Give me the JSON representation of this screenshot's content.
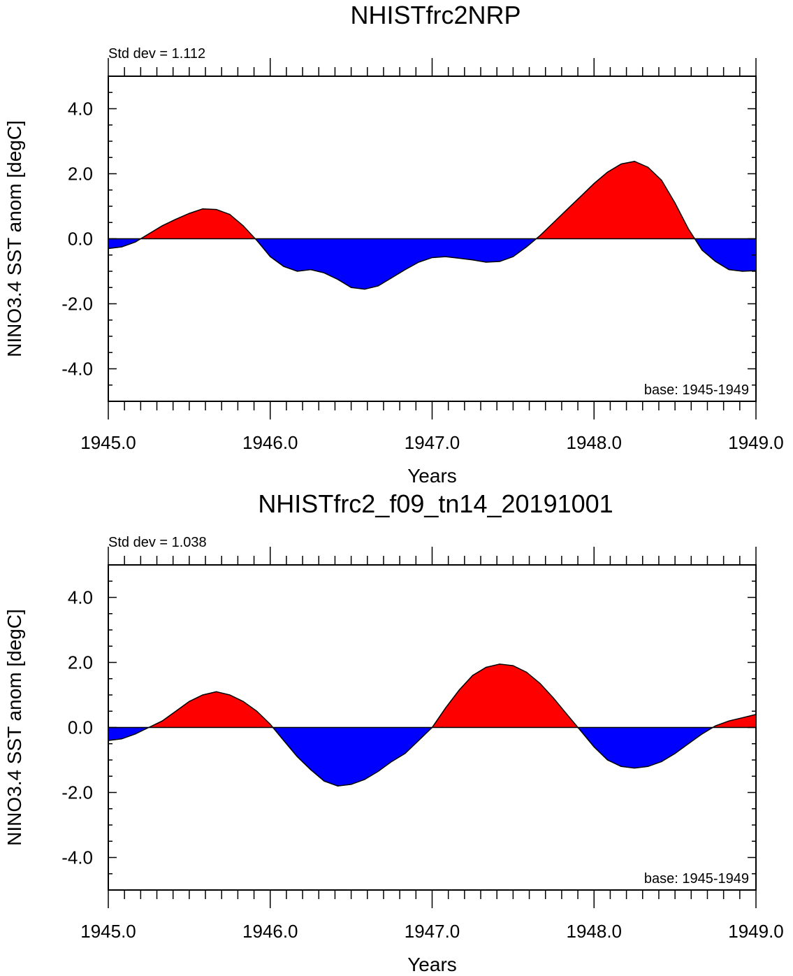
{
  "chart_data": [
    {
      "type": "area",
      "title": "NHISTfrc2NRP",
      "xlabel": "Years",
      "ylabel": "NINO3.4 SST anom [degC]",
      "std_dev_label": "Std dev = 1.112",
      "base_label": "base: 1945-1949",
      "xlim": [
        1945.0,
        1949.0
      ],
      "ylim": [
        -5.0,
        5.0
      ],
      "xticks": [
        "1945.0",
        "1946.0",
        "1947.0",
        "1948.0",
        "1949.0"
      ],
      "yticks": [
        "4.0",
        "2.0",
        "0.0",
        "-2.0",
        "-4.0"
      ],
      "positive_color": "#ff0000",
      "negative_color": "#0000ff",
      "series": [
        {
          "name": "NINO3.4 SST anomaly",
          "x": [
            1945.0,
            1945.083,
            1945.167,
            1945.25,
            1945.333,
            1945.417,
            1945.5,
            1945.583,
            1945.667,
            1945.75,
            1945.833,
            1945.917,
            1946.0,
            1946.083,
            1946.167,
            1946.25,
            1946.333,
            1946.417,
            1946.5,
            1946.583,
            1946.667,
            1946.75,
            1946.833,
            1946.917,
            1947.0,
            1947.083,
            1947.167,
            1947.25,
            1947.333,
            1947.417,
            1947.5,
            1947.583,
            1947.667,
            1947.75,
            1947.833,
            1947.917,
            1948.0,
            1948.083,
            1948.167,
            1948.25,
            1948.333,
            1948.417,
            1948.5,
            1948.583,
            1948.667,
            1948.75,
            1948.833,
            1948.917,
            1949.0
          ],
          "values": [
            -0.3,
            -0.25,
            -0.1,
            0.15,
            0.4,
            0.6,
            0.78,
            0.92,
            0.9,
            0.75,
            0.4,
            -0.05,
            -0.55,
            -0.85,
            -1.0,
            -0.95,
            -1.05,
            -1.25,
            -1.5,
            -1.55,
            -1.45,
            -1.2,
            -0.95,
            -0.72,
            -0.58,
            -0.55,
            -0.6,
            -0.65,
            -0.72,
            -0.7,
            -0.55,
            -0.25,
            0.1,
            0.5,
            0.9,
            1.3,
            1.7,
            2.05,
            2.3,
            2.38,
            2.2,
            1.8,
            1.1,
            0.3,
            -0.35,
            -0.7,
            -0.95,
            -1.0,
            -0.98
          ]
        }
      ]
    },
    {
      "type": "area",
      "title": "NHISTfrc2_f09_tn14_20191001",
      "xlabel": "Years",
      "ylabel": "NINO3.4 SST anom [degC]",
      "std_dev_label": "Std dev = 1.038",
      "base_label": "base: 1945-1949",
      "xlim": [
        1945.0,
        1949.0
      ],
      "ylim": [
        -5.0,
        5.0
      ],
      "xticks": [
        "1945.0",
        "1946.0",
        "1947.0",
        "1948.0",
        "1949.0"
      ],
      "yticks": [
        "4.0",
        "2.0",
        "0.0",
        "-2.0",
        "-4.0"
      ],
      "positive_color": "#ff0000",
      "negative_color": "#0000ff",
      "series": [
        {
          "name": "NINO3.4 SST anomaly",
          "x": [
            1945.0,
            1945.083,
            1945.167,
            1945.25,
            1945.333,
            1945.417,
            1945.5,
            1945.583,
            1945.667,
            1945.75,
            1945.833,
            1945.917,
            1946.0,
            1946.083,
            1946.167,
            1946.25,
            1946.333,
            1946.417,
            1946.5,
            1946.583,
            1946.667,
            1946.75,
            1946.833,
            1946.917,
            1947.0,
            1947.083,
            1947.167,
            1947.25,
            1947.333,
            1947.417,
            1947.5,
            1947.583,
            1947.667,
            1947.75,
            1947.833,
            1947.917,
            1948.0,
            1948.083,
            1948.167,
            1948.25,
            1948.333,
            1948.417,
            1948.5,
            1948.583,
            1948.667,
            1948.75,
            1948.833,
            1948.917,
            1949.0
          ],
          "values": [
            -0.4,
            -0.35,
            -0.2,
            0.0,
            0.2,
            0.5,
            0.8,
            1.0,
            1.1,
            1.0,
            0.8,
            0.5,
            0.1,
            -0.4,
            -0.9,
            -1.3,
            -1.65,
            -1.8,
            -1.75,
            -1.6,
            -1.35,
            -1.05,
            -0.8,
            -0.4,
            0.0,
            0.6,
            1.15,
            1.6,
            1.85,
            1.95,
            1.9,
            1.7,
            1.35,
            0.9,
            0.4,
            -0.1,
            -0.6,
            -1.0,
            -1.2,
            -1.25,
            -1.2,
            -1.05,
            -0.8,
            -0.5,
            -0.2,
            0.05,
            0.2,
            0.3,
            0.4
          ]
        }
      ]
    }
  ]
}
